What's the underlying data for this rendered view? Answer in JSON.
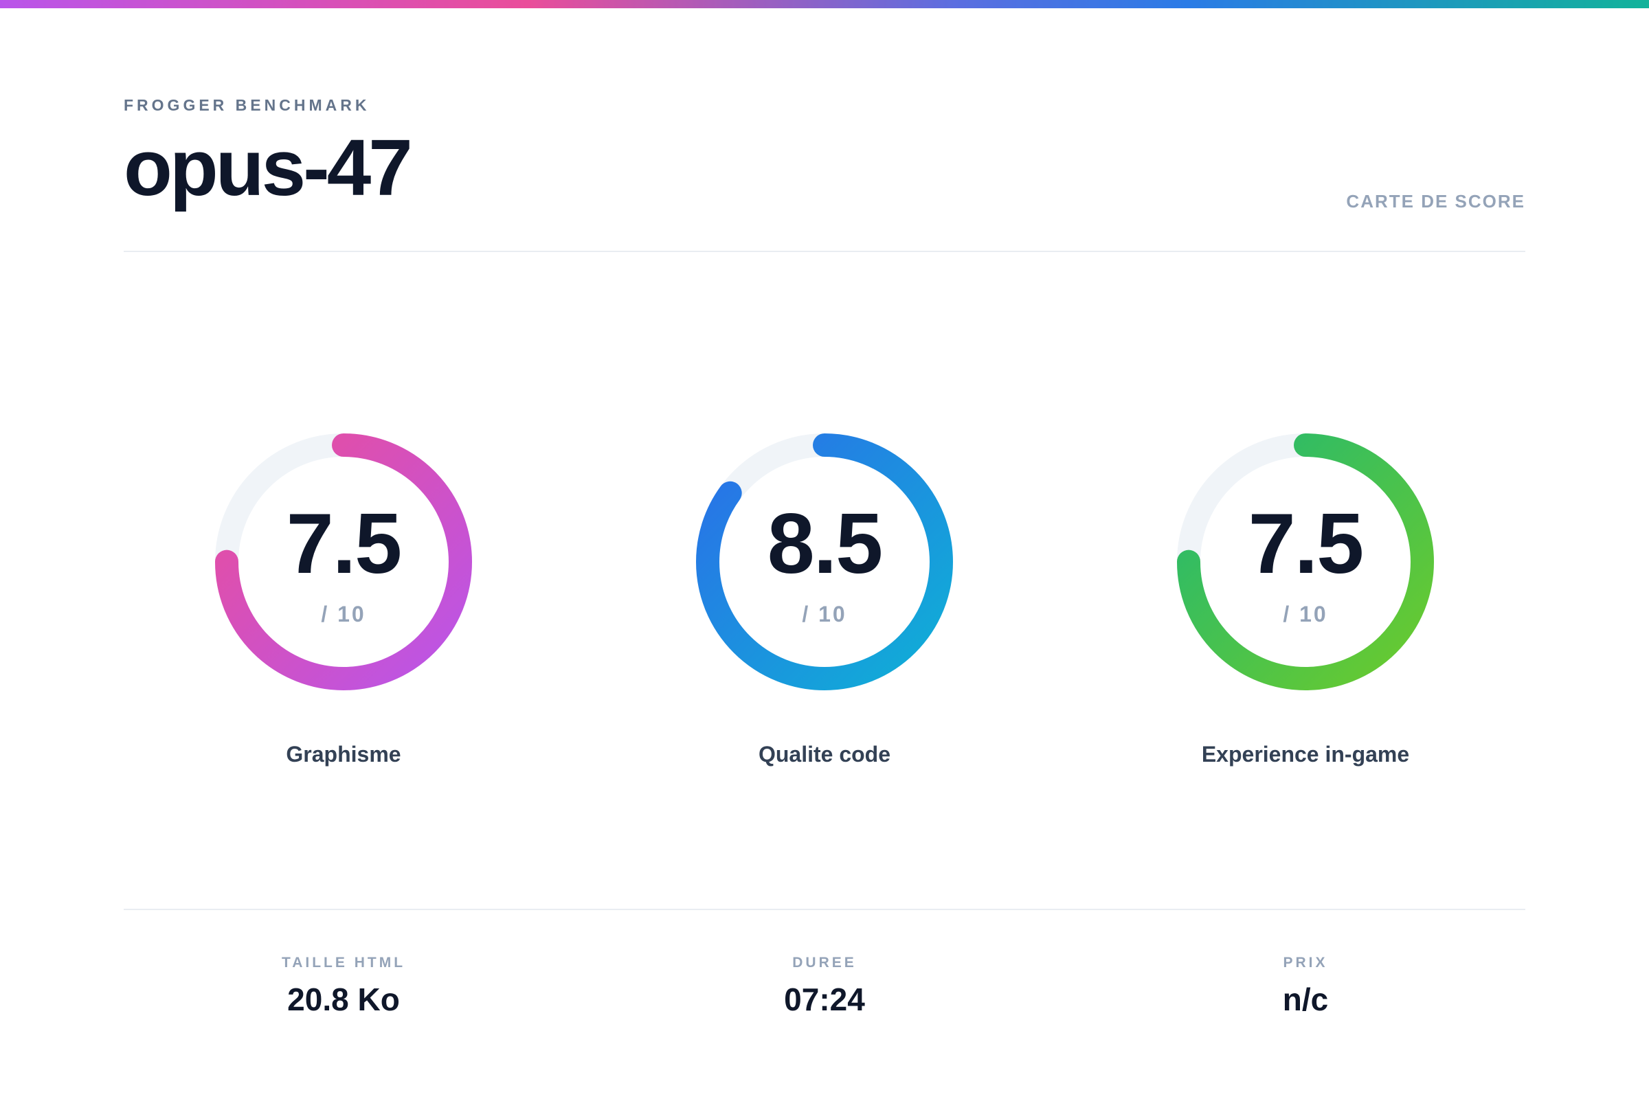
{
  "header": {
    "eyebrow": "FROGGER BENCHMARK",
    "title": "opus-47",
    "card_label": "CARTE DE SCORE"
  },
  "scores": [
    {
      "name": "Graphisme",
      "value": "7.5",
      "max": "/ 10",
      "fraction": 0.75,
      "colors": [
        "#ea4d9a",
        "#b955ea"
      ]
    },
    {
      "name": "Qualite code",
      "value": "8.5",
      "max": "/ 10",
      "fraction": 0.85,
      "colors": [
        "#2a6fe8",
        "#0fb0d6"
      ]
    },
    {
      "name": "Experience in-game",
      "value": "7.5",
      "max": "/ 10",
      "fraction": 0.75,
      "colors": [
        "#22b872",
        "#6ccb2c"
      ]
    }
  ],
  "track_color": "#f0f4f8",
  "stats": [
    {
      "label": "TAILLE HTML",
      "value": "20.8 Ko"
    },
    {
      "label": "DUREE",
      "value": "07:24"
    },
    {
      "label": "PRIX",
      "value": "n/c"
    }
  ]
}
